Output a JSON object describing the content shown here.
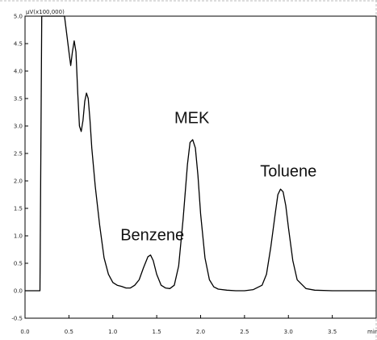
{
  "chart_data": {
    "type": "line",
    "ylabel": "µV(x100,000)",
    "xlabel": "min",
    "xlim": [
      0.0,
      4.0
    ],
    "ylim": [
      -0.5,
      5.0
    ],
    "x_ticks": [
      "0.0",
      "0.5",
      "1.0",
      "1.5",
      "2.0",
      "2.5",
      "3.0",
      "3.5"
    ],
    "y_ticks": [
      "5.0",
      "4.5",
      "4.0",
      "3.5",
      "3.0",
      "2.5",
      "2.0",
      "1.5",
      "1.0",
      "0.5",
      "0.0",
      "-0.5"
    ],
    "grid": false,
    "annotations": [
      {
        "text": "Benzene",
        "x": 1.45,
        "y": 0.92
      },
      {
        "text": "MEK",
        "x": 1.9,
        "y": 3.05
      },
      {
        "text": "Toluene",
        "x": 3.0,
        "y": 2.08
      }
    ],
    "series": [
      {
        "x": [
          0.0,
          0.17,
          0.18,
          0.19,
          0.2,
          0.22,
          0.25,
          0.3,
          0.35,
          0.4,
          0.45,
          0.5,
          0.52,
          0.54,
          0.56,
          0.58,
          0.6,
          0.62,
          0.64,
          0.66,
          0.68,
          0.7,
          0.72,
          0.74,
          0.76,
          0.8,
          0.85,
          0.9,
          0.95,
          1.0,
          1.05,
          1.1,
          1.15,
          1.2,
          1.25,
          1.3,
          1.35,
          1.4,
          1.43,
          1.46,
          1.5,
          1.55,
          1.6,
          1.65,
          1.7,
          1.75,
          1.8,
          1.85,
          1.88,
          1.91,
          1.94,
          1.97,
          2.0,
          2.05,
          2.1,
          2.15,
          2.2,
          2.3,
          2.4,
          2.5,
          2.6,
          2.7,
          2.75,
          2.8,
          2.85,
          2.88,
          2.91,
          2.94,
          2.97,
          3.0,
          3.05,
          3.1,
          3.2,
          3.3,
          3.5,
          3.7,
          3.9,
          4.0
        ],
        "y": [
          0.0,
          0.0,
          2.5,
          5.0,
          5.0,
          5.0,
          5.0,
          5.0,
          5.0,
          5.0,
          5.0,
          4.35,
          4.1,
          4.35,
          4.55,
          4.35,
          3.6,
          3.0,
          2.9,
          3.1,
          3.45,
          3.6,
          3.5,
          3.1,
          2.6,
          1.9,
          1.2,
          0.6,
          0.3,
          0.15,
          0.1,
          0.08,
          0.05,
          0.05,
          0.1,
          0.2,
          0.42,
          0.62,
          0.65,
          0.55,
          0.3,
          0.1,
          0.05,
          0.04,
          0.1,
          0.45,
          1.3,
          2.3,
          2.7,
          2.75,
          2.6,
          2.1,
          1.4,
          0.6,
          0.2,
          0.07,
          0.03,
          0.01,
          0.0,
          0.0,
          0.02,
          0.1,
          0.3,
          0.8,
          1.4,
          1.75,
          1.85,
          1.8,
          1.55,
          1.15,
          0.55,
          0.2,
          0.04,
          0.01,
          0.0,
          0.0,
          0.0,
          0.0
        ],
        "color": "#000000"
      }
    ]
  }
}
